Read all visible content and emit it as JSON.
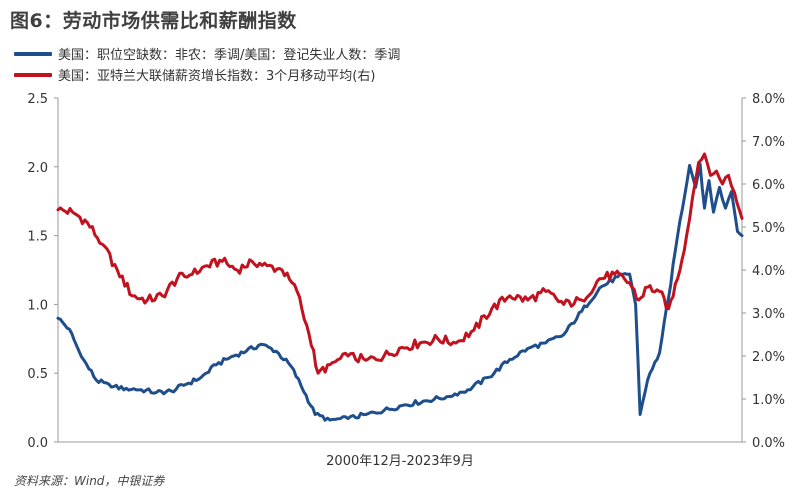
{
  "title": "图6：劳动市场供需比和薪酬指数",
  "source": "资料来源：Wind，中银证券",
  "colors": {
    "series1": "#1f4e8c",
    "series2": "#c0121f",
    "axis": "#999999"
  },
  "chart_data": {
    "type": "line",
    "title": "图6：劳动市场供需比和薪酬指数",
    "xlabel": "2000年12月-2023年9月",
    "x_range": [
      "2000-12",
      "2023-09"
    ],
    "y_left": {
      "ylim": [
        0.0,
        2.5
      ],
      "ticks": [
        "0.0",
        "0.5",
        "1.0",
        "1.5",
        "2.0",
        "2.5"
      ]
    },
    "y_right": {
      "ylim": [
        0.0,
        8.0
      ],
      "ticks": [
        "0.0%",
        "1.0%",
        "2.0%",
        "3.0%",
        "4.0%",
        "5.0%",
        "6.0%",
        "7.0%",
        "8.0%"
      ]
    },
    "series": [
      {
        "name": "美国：职位空缺数：非农：季调/美国：登记失业人数：季调",
        "axis": "left",
        "x": [
          2000.92,
          2001.3,
          2001.7,
          2002.2,
          2002.7,
          2003.2,
          2003.7,
          2004.2,
          2004.7,
          2005.2,
          2005.7,
          2006.2,
          2006.7,
          2007.2,
          2007.7,
          2008.2,
          2008.7,
          2009.2,
          2009.5,
          2010.0,
          2010.6,
          2011.2,
          2011.8,
          2012.5,
          2013.2,
          2013.9,
          2014.6,
          2015.3,
          2016.0,
          2016.6,
          2017.2,
          2017.8,
          2018.4,
          2019.0,
          2019.6,
          2020.0,
          2020.2,
          2020.35,
          2020.6,
          2021.0,
          2021.3,
          2021.6,
          2022.0,
          2022.2,
          2022.35,
          2022.5,
          2022.65,
          2022.8,
          2023.0,
          2023.2,
          2023.4,
          2023.6,
          2023.75
        ],
        "values": [
          0.9,
          0.82,
          0.62,
          0.45,
          0.4,
          0.39,
          0.38,
          0.36,
          0.37,
          0.42,
          0.47,
          0.56,
          0.62,
          0.66,
          0.71,
          0.66,
          0.55,
          0.34,
          0.2,
          0.16,
          0.17,
          0.2,
          0.23,
          0.27,
          0.3,
          0.33,
          0.38,
          0.47,
          0.6,
          0.68,
          0.72,
          0.78,
          0.95,
          1.12,
          1.2,
          1.22,
          1.0,
          0.2,
          0.45,
          0.65,
          1.05,
          1.5,
          2.01,
          1.85,
          2.02,
          1.7,
          1.9,
          1.67,
          1.85,
          1.7,
          1.82,
          1.53,
          1.5
        ]
      },
      {
        "name": "美国：亚特兰大联储薪资增长指数：3个月移动平均(右)",
        "axis": "right",
        "x": [
          2000.92,
          2001.4,
          2001.9,
          2002.4,
          2002.9,
          2003.4,
          2003.9,
          2004.4,
          2004.9,
          2005.4,
          2005.9,
          2006.4,
          2006.9,
          2007.4,
          2007.9,
          2008.4,
          2008.9,
          2009.3,
          2009.6,
          2010.0,
          2010.6,
          2011.2,
          2011.8,
          2012.4,
          2013.0,
          2013.6,
          2014.2,
          2014.8,
          2015.4,
          2016.0,
          2016.6,
          2017.2,
          2017.8,
          2018.4,
          2019.0,
          2019.5,
          2020.0,
          2020.3,
          2020.6,
          2021.0,
          2021.3,
          2021.6,
          2021.9,
          2022.1,
          2022.3,
          2022.5,
          2022.7,
          2022.9,
          2023.1,
          2023.3,
          2023.5,
          2023.75
        ],
        "values": [
          5.4,
          5.35,
          5.1,
          4.6,
          4.0,
          3.4,
          3.3,
          3.4,
          3.8,
          3.9,
          4.1,
          4.2,
          4.0,
          4.2,
          4.1,
          4.0,
          3.5,
          2.5,
          1.6,
          1.8,
          2.0,
          1.9,
          2.0,
          2.2,
          2.3,
          2.4,
          2.3,
          2.6,
          3.1,
          3.4,
          3.3,
          3.5,
          3.2,
          3.3,
          3.8,
          3.9,
          3.7,
          3.3,
          3.6,
          3.5,
          3.1,
          3.8,
          4.8,
          5.7,
          6.5,
          6.7,
          6.2,
          6.3,
          6.0,
          6.2,
          5.8,
          5.2
        ]
      }
    ]
  }
}
